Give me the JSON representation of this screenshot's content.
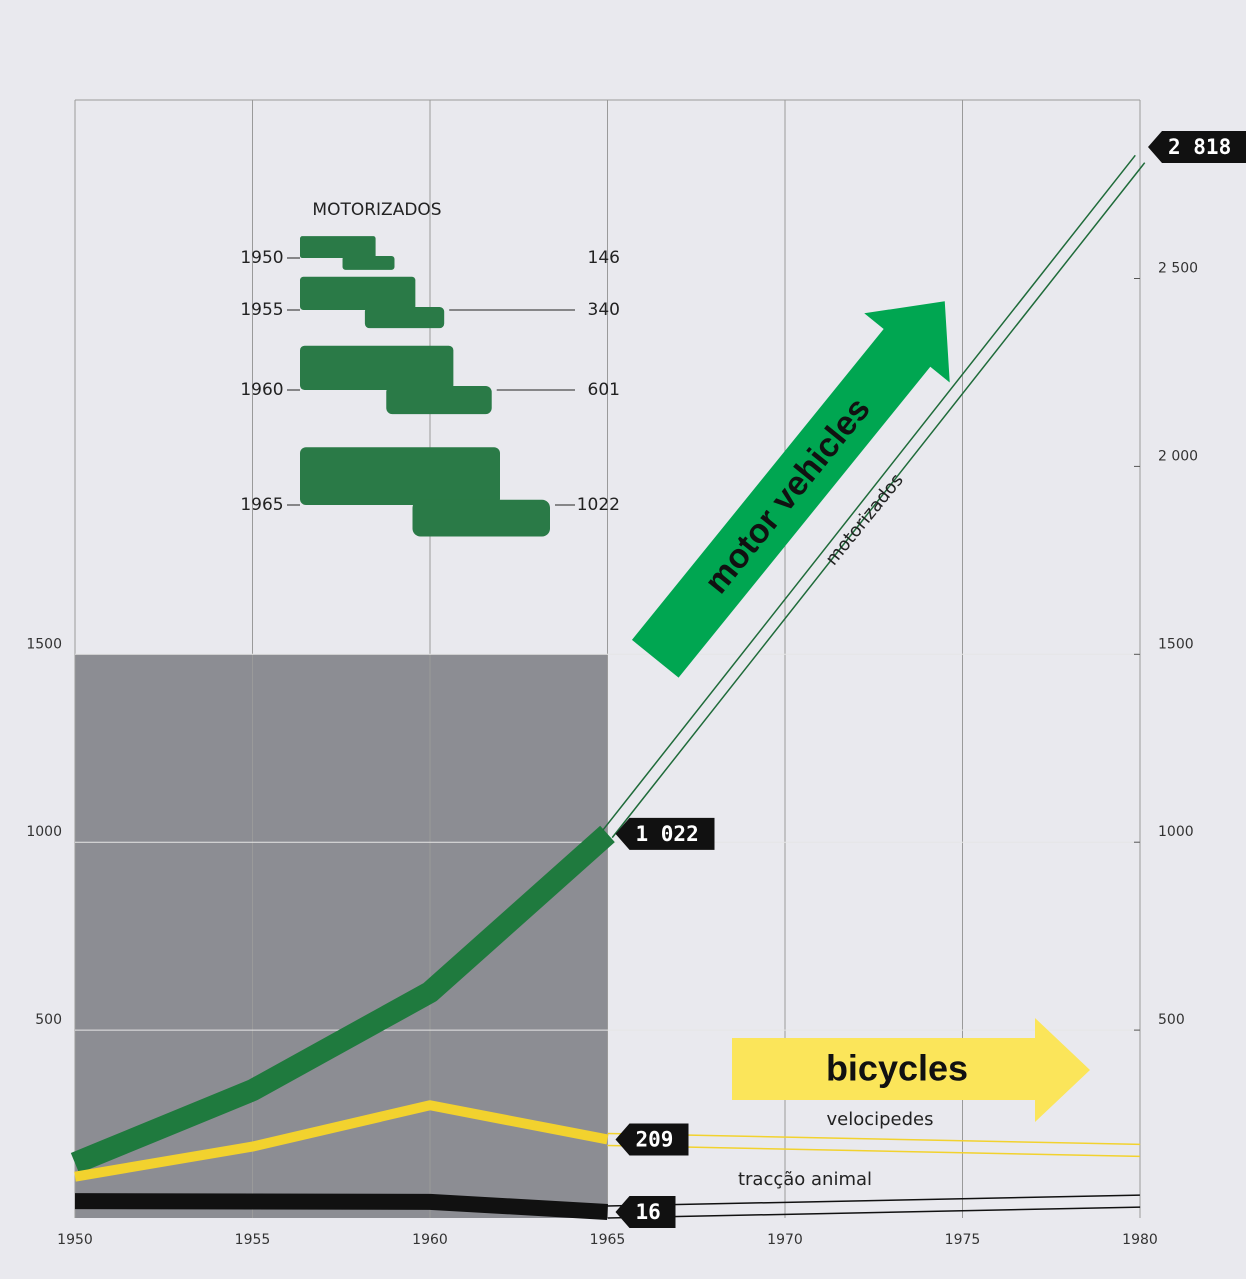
{
  "chart_data": {
    "type": "line",
    "title": "MOTORIZADOS",
    "x": [
      1950,
      1955,
      1960,
      1965,
      1980
    ],
    "series": [
      {
        "name": "motorizados",
        "color": "#1f7a3e",
        "values": [
          146,
          340,
          601,
          1022,
          2818
        ],
        "value_labels": [
          null,
          null,
          null,
          "1 022",
          "2 818"
        ]
      },
      {
        "name": "velocipedes",
        "color": "#f2d22e",
        "values": [
          110,
          190,
          300,
          209,
          180
        ],
        "value_labels": [
          null,
          null,
          null,
          "209",
          null
        ]
      },
      {
        "name": "tracção animal",
        "color": "#111111",
        "values": [
          45,
          44,
          43,
          16,
          45
        ],
        "value_labels": [
          null,
          null,
          null,
          "16",
          null
        ]
      }
    ],
    "xlim": [
      1950,
      1980
    ],
    "xticks": [
      1950,
      1955,
      1960,
      1965,
      1970,
      1975,
      1980
    ],
    "ylim": [
      0,
      2975
    ],
    "yticks": [
      500,
      1000,
      1500
    ],
    "y2lim": [
      0,
      2975
    ],
    "y2ticks": [
      500,
      1000,
      1500,
      {
        "value": 2000,
        "label": "2 000"
      },
      {
        "value": 2500,
        "label": "2 500"
      }
    ],
    "annotations": [
      "motor vehicles",
      "bicycles"
    ],
    "grid": true
  }
}
